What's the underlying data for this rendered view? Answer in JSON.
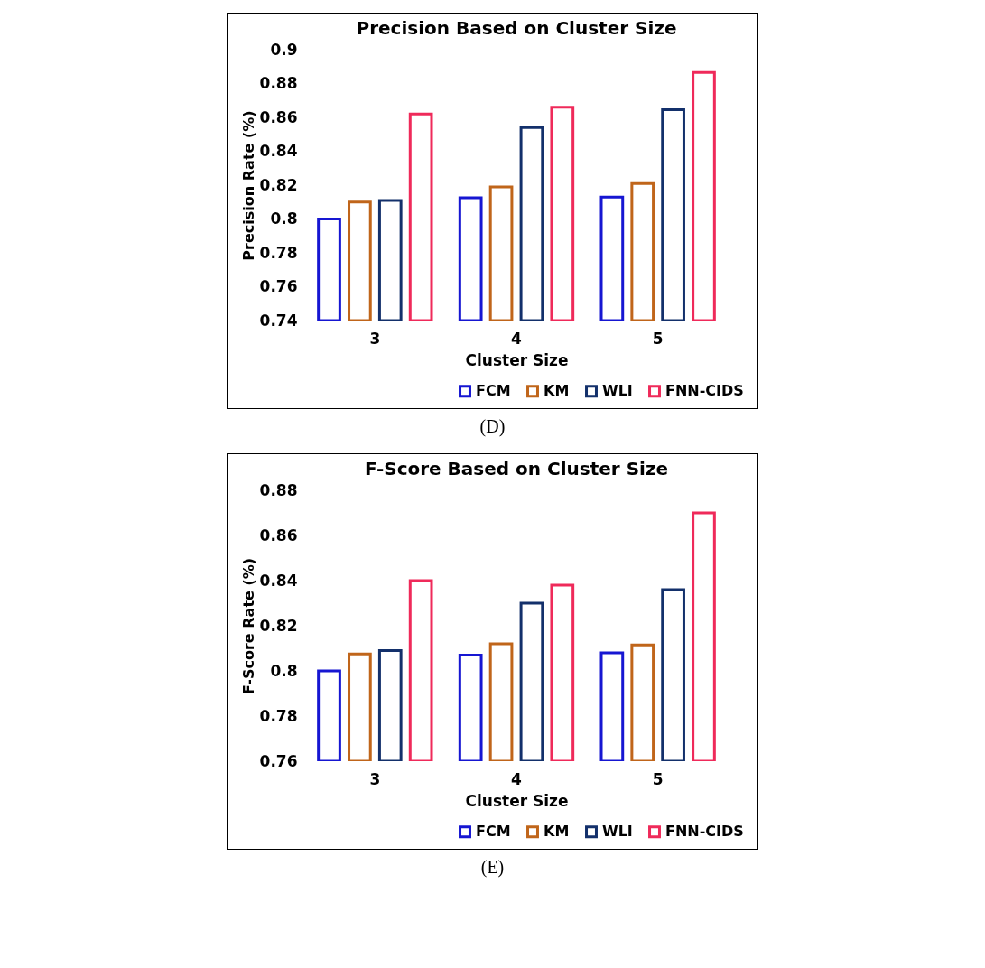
{
  "chart_data": [
    {
      "type": "bar",
      "title": "Precision Based on Cluster Size",
      "xlabel": "Cluster Size",
      "ylabel": "Precision Rate (%)",
      "categories": [
        "3",
        "4",
        "5"
      ],
      "series": [
        {
          "name": "FCM",
          "color": "#1616d2",
          "values": [
            0.8,
            0.8125,
            0.813
          ]
        },
        {
          "name": "KM",
          "color": "#c0651a",
          "values": [
            0.81,
            0.819,
            0.821
          ]
        },
        {
          "name": "WLI",
          "color": "#13306b",
          "values": [
            0.811,
            0.854,
            0.8645
          ]
        },
        {
          "name": "FNN-CIDS",
          "color": "#ef2a5a",
          "values": [
            0.862,
            0.866,
            0.8865
          ]
        }
      ],
      "ylim": [
        0.74,
        0.9
      ],
      "yticks": [
        0.74,
        0.76,
        0.78,
        0.8,
        0.82,
        0.84,
        0.86,
        0.88,
        0.9
      ],
      "legend": "bottom right",
      "annotations": [
        "(D)"
      ]
    },
    {
      "type": "bar",
      "title": "F-Score Based on Cluster Size",
      "xlabel": "Cluster Size",
      "ylabel": "F-Score Rate (%)",
      "categories": [
        "3",
        "4",
        "5"
      ],
      "series": [
        {
          "name": "FCM",
          "color": "#1616d2",
          "values": [
            0.8,
            0.807,
            0.808
          ]
        },
        {
          "name": "KM",
          "color": "#c0651a",
          "values": [
            0.8075,
            0.812,
            0.8115
          ]
        },
        {
          "name": "WLI",
          "color": "#13306b",
          "values": [
            0.809,
            0.83,
            0.836
          ]
        },
        {
          "name": "FNN-CIDS",
          "color": "#ef2a5a",
          "values": [
            0.84,
            0.838,
            0.87
          ]
        }
      ],
      "ylim": [
        0.76,
        0.88
      ],
      "yticks": [
        0.76,
        0.78,
        0.8,
        0.82,
        0.84,
        0.86,
        0.88
      ],
      "legend": "bottom right",
      "annotations": [
        "(E)"
      ]
    }
  ]
}
